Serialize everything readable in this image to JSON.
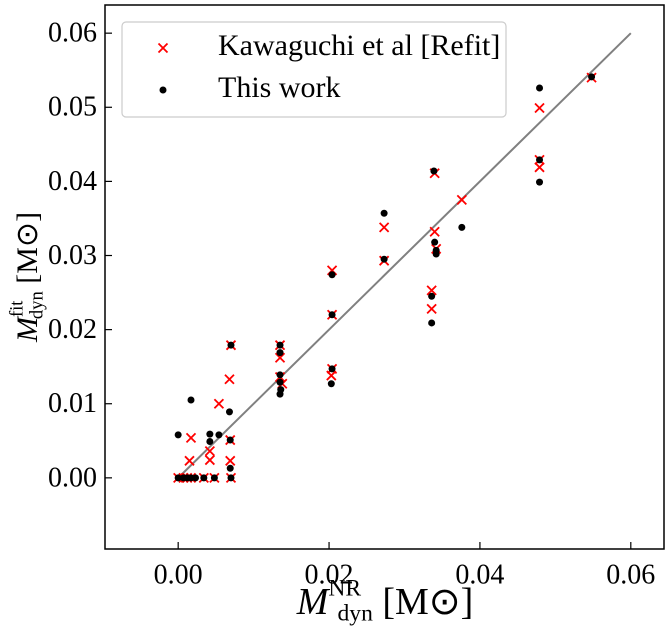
{
  "chart_data": {
    "type": "scatter",
    "xlabel": {
      "symbol": "M",
      "sup": "NR",
      "sub": "dyn",
      "unit": "[M⊙]"
    },
    "ylabel": {
      "symbol": "M",
      "sup": "fit",
      "sub": "dyn",
      "unit": "[M⊙]"
    },
    "xlim": [
      -0.0097,
      0.0644
    ],
    "ylim": [
      -0.0096,
      0.0638
    ],
    "xticks": [
      {
        "value": 0,
        "label": "0.00"
      },
      {
        "value": 0.02,
        "label": "0.02"
      },
      {
        "value": 0.04,
        "label": "0.04"
      },
      {
        "value": 0.06,
        "label": "0.06"
      }
    ],
    "yticks": [
      {
        "value": 0,
        "label": "0.00"
      },
      {
        "value": 0.01,
        "label": "0.01"
      },
      {
        "value": 0.02,
        "label": "0.02"
      },
      {
        "value": 0.03,
        "label": "0.03"
      },
      {
        "value": 0.04,
        "label": "0.04"
      },
      {
        "value": 0.05,
        "label": "0.05"
      },
      {
        "value": 0.06,
        "label": "0.06"
      }
    ],
    "legend": "upper left",
    "reference_line": {
      "x": [
        0,
        0.06
      ],
      "y": [
        0,
        0.06
      ],
      "color": "#808080"
    },
    "series": [
      {
        "name": "Kawaguchi et al [Refit]",
        "color": "#ff0000",
        "marker": "x",
        "x": [
          0,
          0.0007,
          0.0012,
          0.0017,
          0.0017,
          0.0015,
          0.0034,
          0.0042,
          0.0042,
          0.0048,
          0.0054,
          0.0068,
          0.0069,
          0.0069,
          0.007,
          0.007,
          0.0135,
          0.0135,
          0.0135,
          0.0138,
          0.0203,
          0.0204,
          0.0204,
          0.0204,
          0.0273,
          0.0273,
          0.0336,
          0.0336,
          0.034,
          0.034,
          0.0342,
          0.0376,
          0.0479,
          0.0479,
          0.0479,
          0.0548
        ],
        "values": [
          0,
          0,
          0,
          0,
          0.0054,
          0.0023,
          0,
          0.0036,
          0.0024,
          0,
          0.01,
          0.0133,
          0.0051,
          0.0023,
          0,
          0.0179,
          0.0179,
          0.0162,
          0.0136,
          0.0127,
          0.0138,
          0.0147,
          0.022,
          0.028,
          0.0338,
          0.0293,
          0.0253,
          0.0228,
          0.0332,
          0.0411,
          0.0309,
          0.0375,
          0.0499,
          0.0429,
          0.0419,
          0.054
        ]
      },
      {
        "name": "This work",
        "color": "#000000",
        "marker": "o",
        "x": [
          0,
          0,
          0.0007,
          0.0012,
          0.0017,
          0.0023,
          0.0017,
          0.0034,
          0.0042,
          0.0042,
          0.0048,
          0.0054,
          0.0068,
          0.0069,
          0.0069,
          0.007,
          0.007,
          0.0135,
          0.0135,
          0.0135,
          0.0135,
          0.0136,
          0.0135,
          0.0203,
          0.0204,
          0.0204,
          0.0204,
          0.0273,
          0.0273,
          0.0336,
          0.0336,
          0.0339,
          0.034,
          0.0342,
          0.0342,
          0.0376,
          0.0479,
          0.0479,
          0.0479,
          0.0548
        ],
        "values": [
          0.0058,
          0,
          0,
          0,
          0,
          0,
          0.0105,
          0,
          0.0059,
          0.0049,
          0,
          0.0058,
          0.0089,
          0.0051,
          0.0013,
          0,
          0.0179,
          0.0179,
          0.0169,
          0.0139,
          0.0129,
          0.0119,
          0.0113,
          0.0127,
          0.0147,
          0.022,
          0.0274,
          0.0357,
          0.0295,
          0.0245,
          0.0209,
          0.0414,
          0.0318,
          0.0307,
          0.0302,
          0.0338,
          0.0526,
          0.0429,
          0.0399,
          0.0541
        ]
      }
    ]
  }
}
